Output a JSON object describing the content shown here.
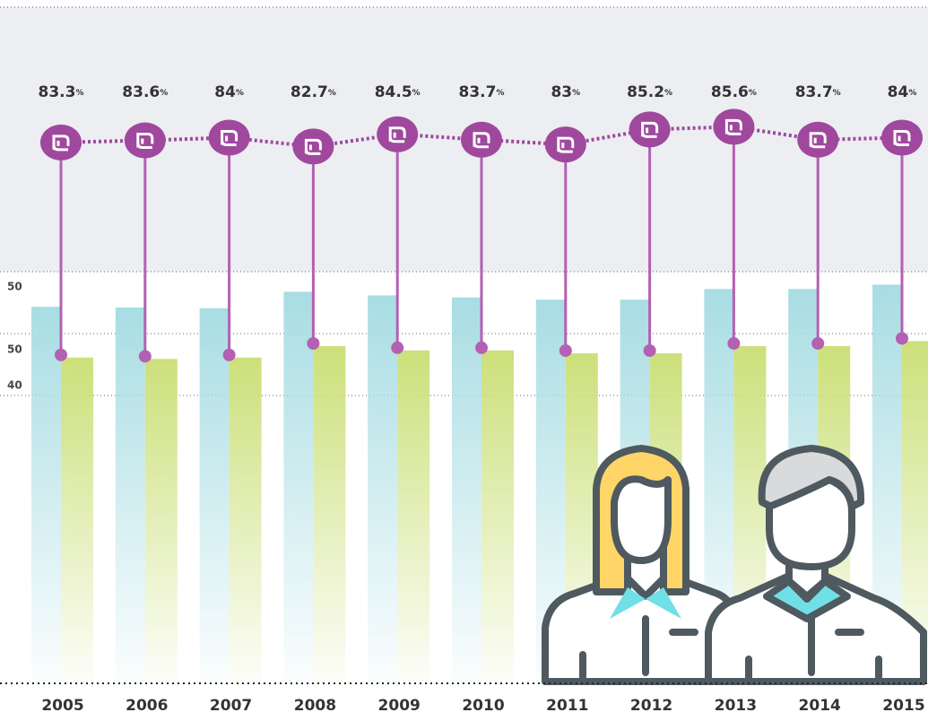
{
  "chart_data": {
    "type": "bar",
    "categories": [
      "2005",
      "2006",
      "2007",
      "2008",
      "2009",
      "2010",
      "2011",
      "2012",
      "2013",
      "2014",
      "2015"
    ],
    "y_labels": [
      "50",
      "50",
      "40"
    ],
    "ylim": [
      0,
      95.3
    ],
    "y2lim": [
      4.2,
      104.2
    ],
    "unit": "%",
    "series": [
      {
        "color": "#a8dde3",
        "values": [
          52.4,
          52.3,
          52.2,
          54.5,
          54.0,
          53.7,
          53.4,
          53.4,
          54.9,
          54.9,
          55.5
        ]
      },
      {
        "color": "#cce07a",
        "values": [
          45.3,
          45.1,
          45.3,
          46.9,
          46.3,
          46.3,
          45.9,
          45.9,
          46.9,
          46.9,
          47.6
        ]
      },
      {
        "type": "line",
        "axis": "y2",
        "color": "#a0489e",
        "values": [
          83.3,
          83.6,
          84.0,
          82.7,
          84.5,
          83.7,
          83.0,
          85.2,
          85.6,
          83.7,
          84.0
        ]
      }
    ]
  }
}
